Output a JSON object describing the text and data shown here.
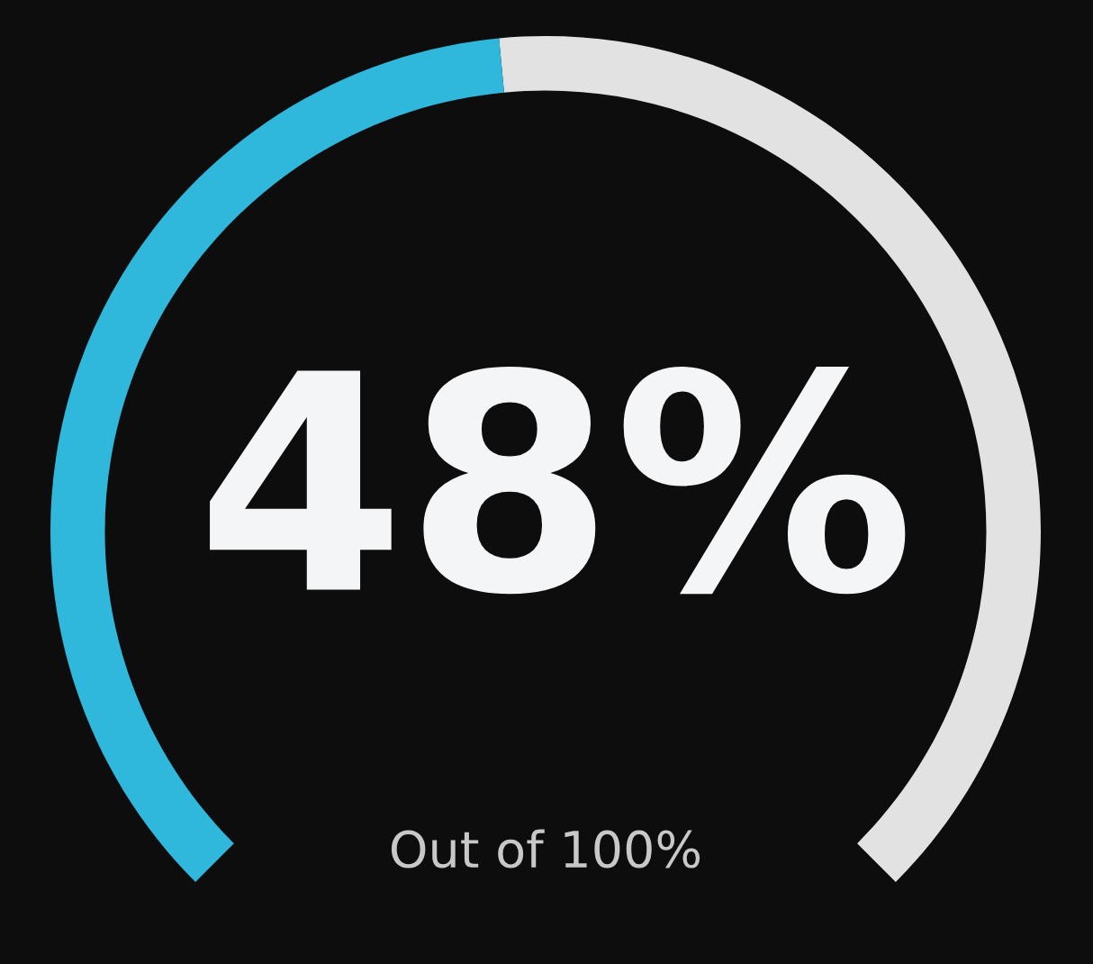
{
  "chart_data": {
    "type": "donut",
    "categories": [
      null,
      null
    ],
    "values": [
      48,
      52
    ],
    "colors": [
      "#2fb8dc",
      "#e2e2e2"
    ],
    "value_labels": [
      "48%",
      null
    ],
    "annotations": [
      "Out of 100%"
    ]
  }
}
